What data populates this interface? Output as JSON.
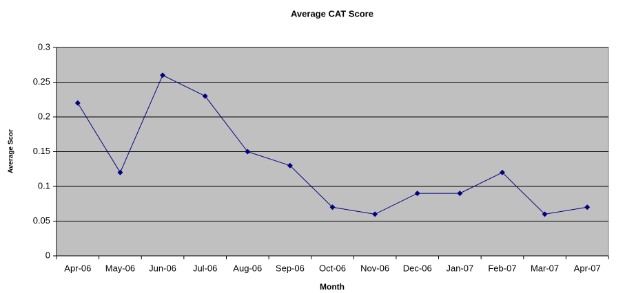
{
  "chart_data": {
    "type": "line",
    "title": "Average CAT Score",
    "x_label": "Month",
    "y_label": "Average Scor",
    "categories": [
      "Apr-06",
      "May-06",
      "Jun-06",
      "Jul-06",
      "Aug-06",
      "Sep-06",
      "Oct-06",
      "Nov-06",
      "Dec-06",
      "Jan-07",
      "Feb-07",
      "Mar-07",
      "Apr-07"
    ],
    "series": [
      {
        "name": "Average CAT Score",
        "color": "#000080",
        "values": [
          0.22,
          0.12,
          0.26,
          0.23,
          0.15,
          0.13,
          0.07,
          0.06,
          0.09,
          0.09,
          0.12,
          0.06,
          0.07
        ]
      }
    ],
    "ylim": [
      0,
      0.3
    ],
    "yticks": [
      0,
      0.05,
      0.1,
      0.15,
      0.2,
      0.25,
      0.3
    ],
    "grid": true,
    "plot_background": "#c0c0c0"
  }
}
